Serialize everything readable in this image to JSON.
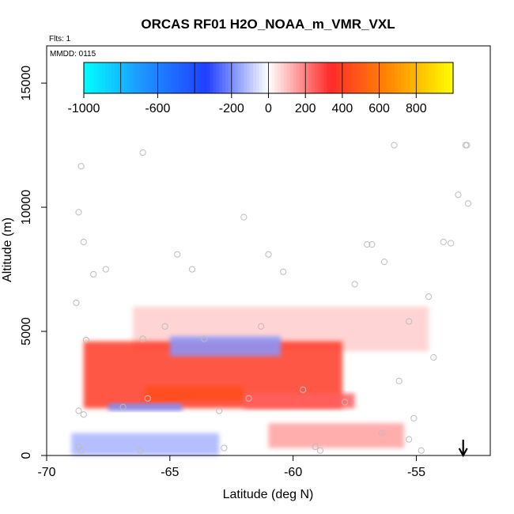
{
  "chart_data": {
    "type": "heatmap",
    "title": "ORCAS RF01 H2O_NOAA_m_VMR_VXL",
    "flights_label": "Flts: 1",
    "date_label": "MMDD: 0115",
    "xlabel": "Latitude (deg N)",
    "ylabel": "Altitude (m)",
    "xlim": [
      -70,
      -52
    ],
    "ylim": [
      0,
      16500
    ],
    "x_ticks": [
      -70,
      -65,
      -60,
      -55
    ],
    "y_ticks": [
      0,
      5000,
      10000,
      15000
    ],
    "colorbar": {
      "range": [
        -1000,
        1000
      ],
      "tick_values": [
        -1000,
        -600,
        -200,
        0,
        200,
        400,
        600,
        800
      ],
      "tick_labels": [
        "-1000",
        "-600",
        "-200",
        "0",
        "200",
        "400",
        "600",
        "800"
      ],
      "cell_boundaries": [
        -1000,
        -800,
        -600,
        -400,
        -200,
        0,
        200,
        400,
        600,
        800,
        1000
      ],
      "colors": [
        "#00ffff",
        "#1e90ff",
        "#1f3fff",
        "#ffffff",
        "#ff2a2a",
        "#ff8c00",
        "#ffff00"
      ]
    },
    "anomaly_features": [
      {
        "name": "upper weak positive layer",
        "lat_range": [
          -66.5,
          -54.5
        ],
        "alt_range": [
          4200,
          6000
        ],
        "value": 80
      },
      {
        "name": "main positive tongue",
        "lat_range": [
          -68.5,
          -58
        ],
        "alt_range": [
          1900,
          4600
        ],
        "value": 380
      },
      {
        "name": "positive layer core",
        "lat_range": [
          -66,
          -62
        ],
        "alt_range": [
          2200,
          2800
        ],
        "value": 450
      },
      {
        "name": "tongue extension",
        "lat_range": [
          -62,
          -57.5
        ],
        "alt_range": [
          1900,
          2500
        ],
        "value": 250
      },
      {
        "name": "negative streak mid",
        "lat_range": [
          -65,
          -60.5
        ],
        "alt_range": [
          4000,
          4800
        ],
        "value": -180
      },
      {
        "name": "negative streak low",
        "lat_range": [
          -67.5,
          -64.5
        ],
        "alt_range": [
          1800,
          2100
        ],
        "value": -200
      },
      {
        "name": "near-surface negative",
        "lat_range": [
          -69,
          -63
        ],
        "alt_range": [
          0,
          900
        ],
        "value": -130
      },
      {
        "name": "near-surface positive",
        "lat_range": [
          -61,
          -55.5
        ],
        "alt_range": [
          300,
          1300
        ],
        "value": 150
      }
    ],
    "sample_points": [
      {
        "lat": -68.8,
        "alt": 6150
      },
      {
        "lat": -68.7,
        "alt": 9800
      },
      {
        "lat": -68.6,
        "alt": 11650
      },
      {
        "lat": -68.5,
        "alt": 8600
      },
      {
        "lat": -68.4,
        "alt": 4650
      },
      {
        "lat": -68.1,
        "alt": 7300
      },
      {
        "lat": -67.6,
        "alt": 7500
      },
      {
        "lat": -66.1,
        "alt": 12200
      },
      {
        "lat": -64.7,
        "alt": 8100
      },
      {
        "lat": -64.1,
        "alt": 7500
      },
      {
        "lat": -62.0,
        "alt": 9600
      },
      {
        "lat": -61.0,
        "alt": 8100
      },
      {
        "lat": -60.4,
        "alt": 7400
      },
      {
        "lat": -57.5,
        "alt": 6900
      },
      {
        "lat": -57.0,
        "alt": 8500
      },
      {
        "lat": -56.8,
        "alt": 8500
      },
      {
        "lat": -56.3,
        "alt": 7800
      },
      {
        "lat": -55.9,
        "alt": 12500
      },
      {
        "lat": -55.3,
        "alt": 5400
      },
      {
        "lat": -54.5,
        "alt": 6400
      },
      {
        "lat": -53.9,
        "alt": 8600
      },
      {
        "lat": -53.6,
        "alt": 8550
      },
      {
        "lat": -53.3,
        "alt": 10500
      },
      {
        "lat": -53.0,
        "alt": 12500
      },
      {
        "lat": -52.95,
        "alt": 12500
      },
      {
        "lat": -52.9,
        "alt": 10150
      },
      {
        "lat": -54.3,
        "alt": 3950
      },
      {
        "lat": -55.7,
        "alt": 3000
      },
      {
        "lat": -57.9,
        "alt": 2150
      },
      {
        "lat": -59.6,
        "alt": 2650
      },
      {
        "lat": -65.9,
        "alt": 2300
      },
      {
        "lat": -61.3,
        "alt": 5200
      },
      {
        "lat": -63.6,
        "alt": 4700
      },
      {
        "lat": -65.2,
        "alt": 5200
      },
      {
        "lat": -66.1,
        "alt": 4700
      },
      {
        "lat": -66.9,
        "alt": 1950
      },
      {
        "lat": -68.7,
        "alt": 1800
      },
      {
        "lat": -68.5,
        "alt": 1650
      },
      {
        "lat": -63.0,
        "alt": 1800
      },
      {
        "lat": -62.8,
        "alt": 300
      },
      {
        "lat": -66.2,
        "alt": 200
      },
      {
        "lat": -68.7,
        "alt": 350
      },
      {
        "lat": -68.6,
        "alt": 200
      },
      {
        "lat": -59.1,
        "alt": 350
      },
      {
        "lat": -58.9,
        "alt": 200
      },
      {
        "lat": -56.4,
        "alt": 900
      },
      {
        "lat": -55.1,
        "alt": 1500
      },
      {
        "lat": -55.3,
        "alt": 650
      },
      {
        "lat": -54.8,
        "alt": 200
      },
      {
        "lat": -61.8,
        "alt": 2300
      }
    ],
    "flight_direction_marker": {
      "lat": -53.1,
      "symbol": "down-arrow"
    }
  }
}
